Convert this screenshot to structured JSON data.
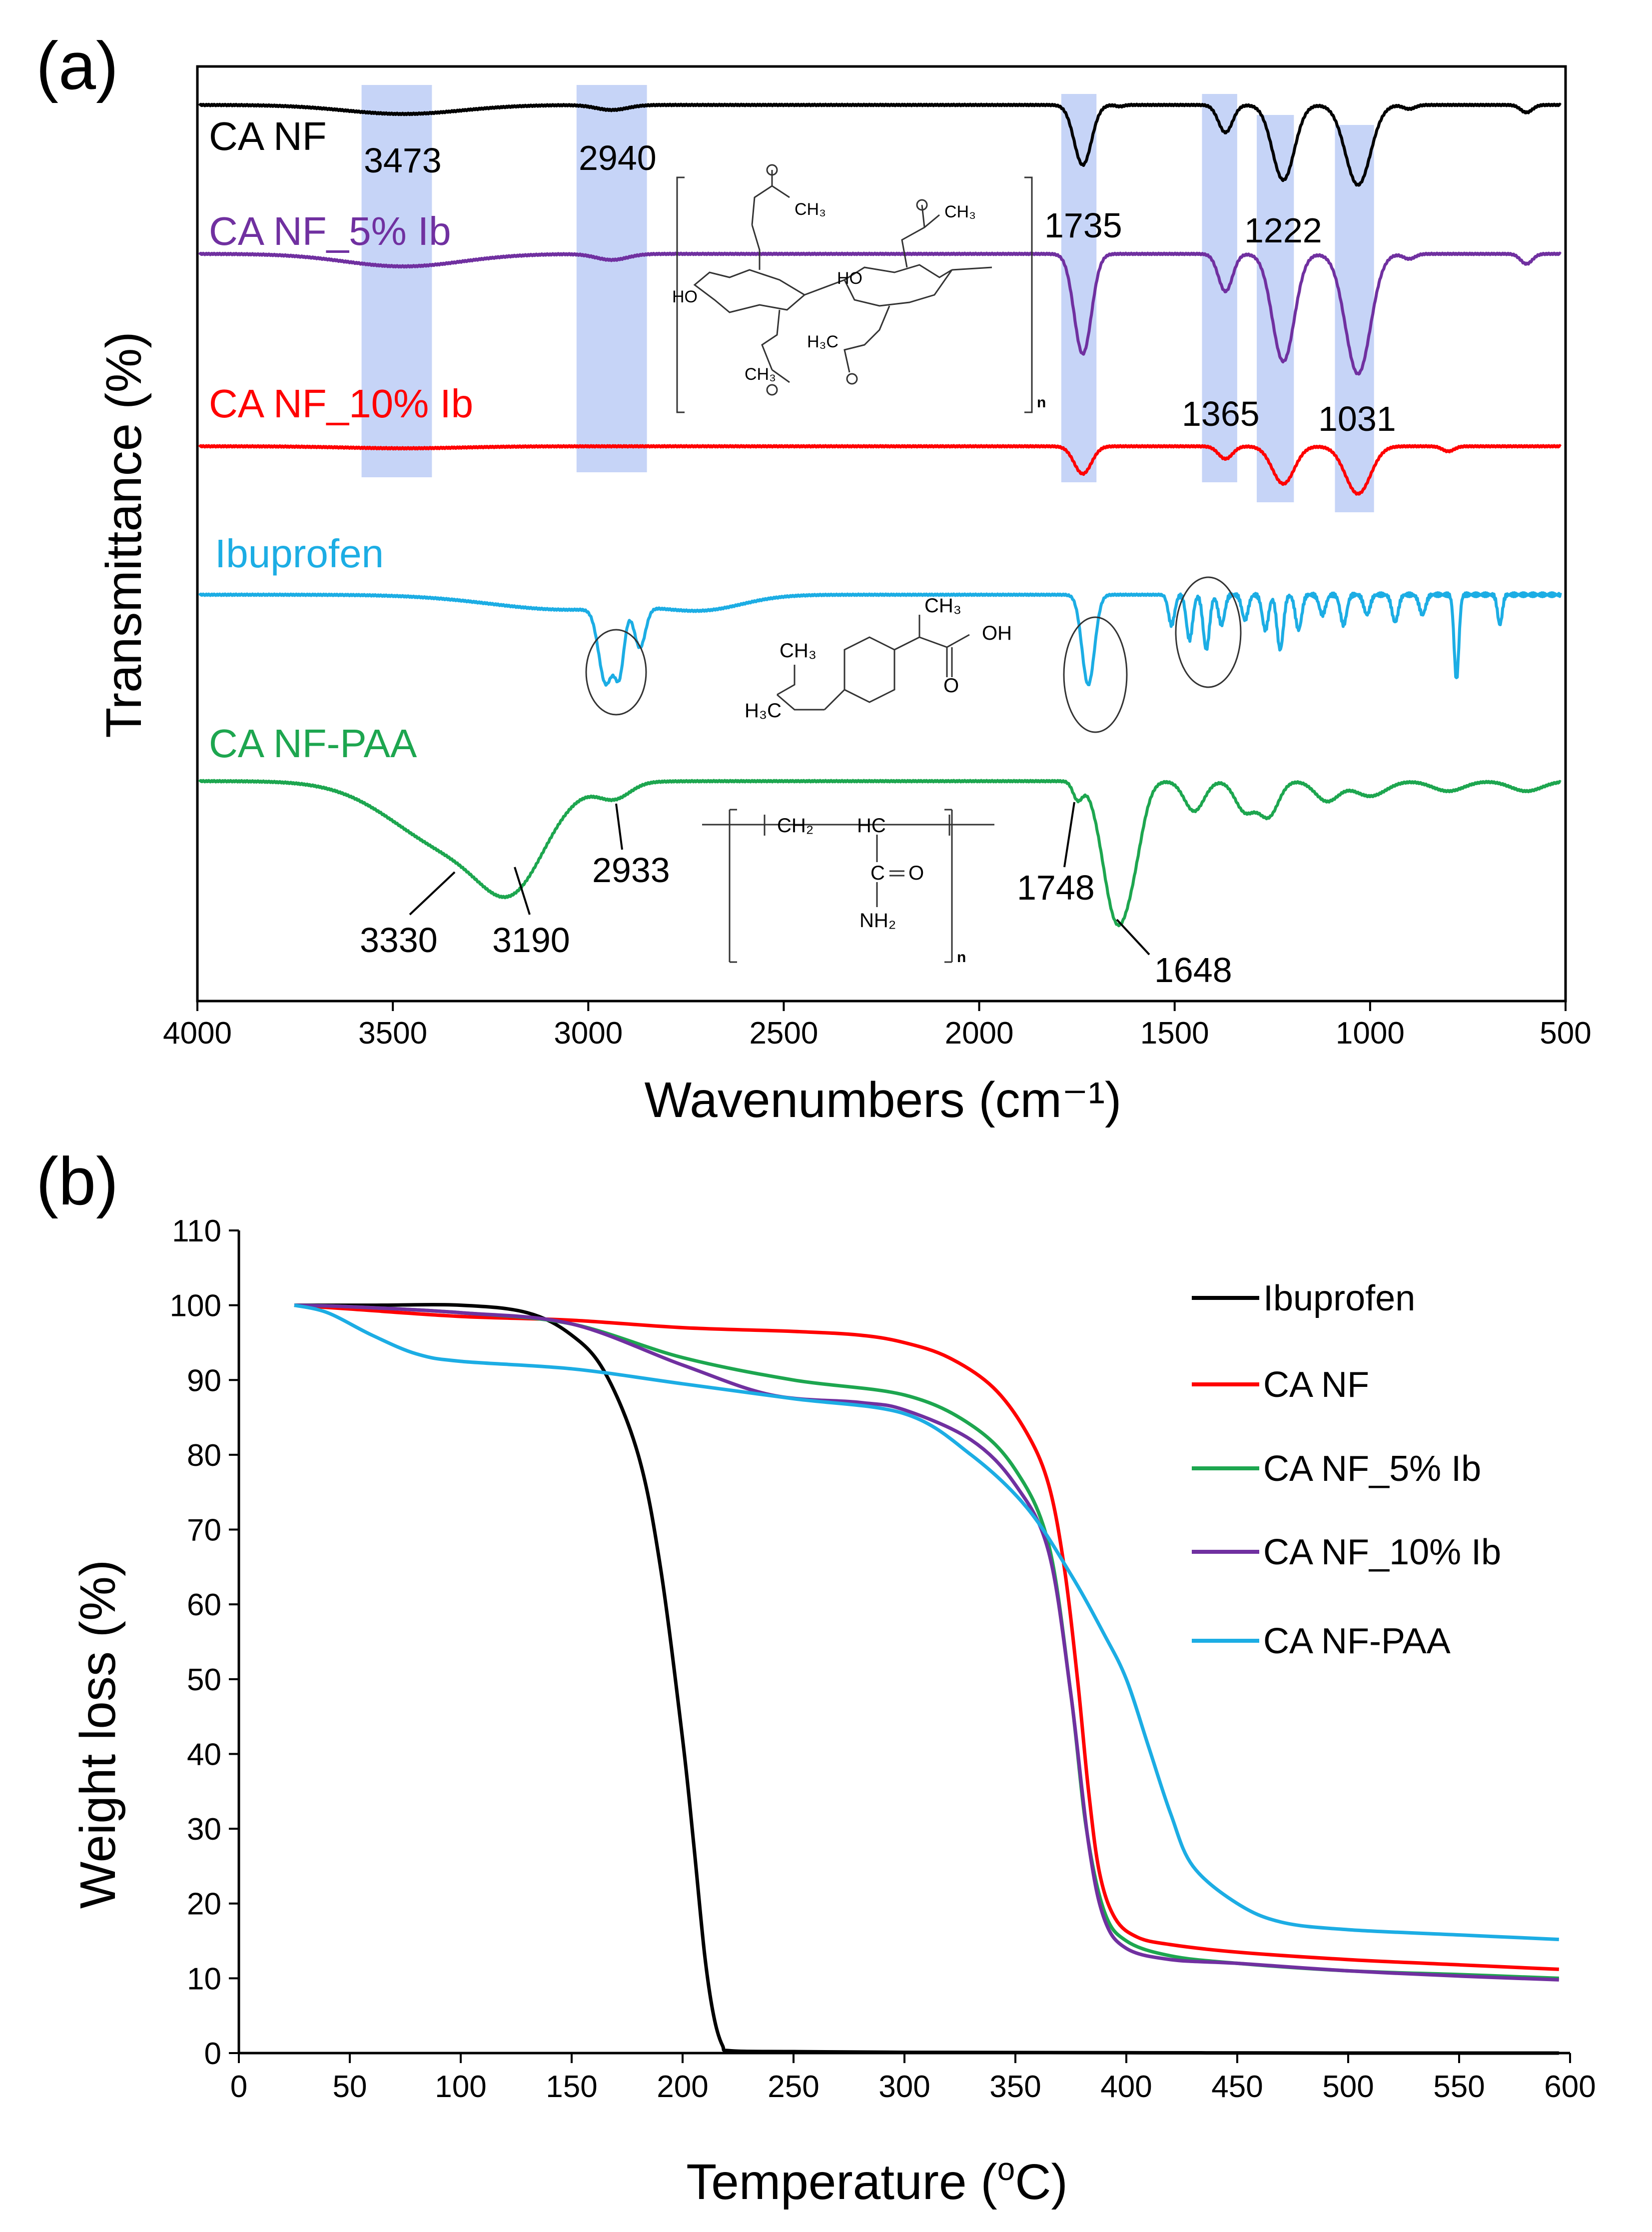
{
  "panel_a": {
    "panel_label": "(a)",
    "chart_data": {
      "type": "line",
      "title": "",
      "xlabel": "Wavenumbers (cm⁻¹)",
      "ylabel": "Transmittance (%)",
      "xlim": [
        4000,
        500
      ],
      "x_ticks": [
        "4000",
        "3500",
        "3000",
        "2500",
        "2000",
        "1500",
        "1000",
        "500"
      ],
      "x_tick_values": [
        4000,
        3500,
        3000,
        2500,
        2000,
        1500,
        1000,
        500
      ],
      "highlight_bands": [
        [
          3580,
          3400
        ],
        [
          3030,
          2850
        ],
        [
          1790,
          1700
        ],
        [
          1430,
          1340
        ],
        [
          1290,
          1195
        ],
        [
          1090,
          990
        ]
      ],
      "series": [
        {
          "name": "CA NF",
          "color": "#000000",
          "offset": 0,
          "peaks": [
            [
              3473,
              18,
              150
            ],
            [
              2940,
              10,
              40
            ],
            [
              1735,
              120,
              22
            ],
            [
              1640,
              3,
              10
            ],
            [
              1370,
              55,
              18
            ],
            [
              1222,
              150,
              28
            ],
            [
              1031,
              160,
              32
            ],
            [
              900,
              8,
              15
            ],
            [
              600,
              15,
              15
            ]
          ]
        },
        {
          "name": "CA NF_5% Ib",
          "color": "#7030A0",
          "offset": 1,
          "peaks": [
            [
              3473,
              25,
              150
            ],
            [
              2940,
              12,
              40
            ],
            [
              1735,
              200,
              22
            ],
            [
              1370,
              75,
              18
            ],
            [
              1222,
              215,
              28
            ],
            [
              1031,
              240,
              32
            ],
            [
              900,
              10,
              15
            ],
            [
              600,
              20,
              15
            ]
          ]
        },
        {
          "name": "CA NF_10% Ib",
          "color": "#FF0000",
          "offset": 2,
          "peaks": [
            [
              3473,
              4,
              150
            ],
            [
              1735,
              55,
              22
            ],
            [
              1370,
              25,
              18
            ],
            [
              1222,
              75,
              28
            ],
            [
              1031,
              95,
              32
            ],
            [
              800,
              10,
              15
            ]
          ]
        },
        {
          "name": "Ibuprofen",
          "color": "#1CADE4",
          "offset": 3,
          "peaks": [
            [
              3050,
              30,
              200
            ],
            [
              2955,
              150,
              18
            ],
            [
              2920,
              120,
              12
            ],
            [
              2868,
              80,
              14
            ],
            [
              2700,
              25,
              100
            ],
            [
              1721,
              180,
              16
            ],
            [
              1508,
              60,
              8
            ],
            [
              1462,
              90,
              8
            ],
            [
              1419,
              110,
              8
            ],
            [
              1380,
              60,
              8
            ],
            [
              1320,
              50,
              8
            ],
            [
              1268,
              70,
              8
            ],
            [
              1230,
              110,
              8
            ],
            [
              1183,
              70,
              8
            ],
            [
              1122,
              40,
              8
            ],
            [
              1068,
              60,
              8
            ],
            [
              1008,
              40,
              8
            ],
            [
              936,
              55,
              8
            ],
            [
              866,
              40,
              8
            ],
            [
              779,
              170,
              6
            ],
            [
              668,
              60,
              6
            ]
          ]
        },
        {
          "name": "CA NF-PAA",
          "color": "#1DA64F",
          "offset": 4,
          "peaks": [
            [
              3330,
              140,
              160
            ],
            [
              3190,
              130,
              80
            ],
            [
              2933,
              30,
              40
            ],
            [
              1748,
              35,
              12
            ],
            [
              1648,
              275,
              35
            ],
            [
              1600,
              70,
              25
            ],
            [
              1450,
              60,
              25
            ],
            [
              1320,
              60,
              25
            ],
            [
              1260,
              70,
              25
            ],
            [
              1110,
              40,
              30
            ],
            [
              1000,
              30,
              40
            ],
            [
              800,
              20,
              40
            ],
            [
              600,
              20,
              40
            ]
          ]
        }
      ],
      "series_labels": [
        "CA NF",
        "CA NF_5% Ib",
        "CA NF_10% Ib",
        "Ibuprofen",
        "CA NF-PAA"
      ],
      "annotations": [
        "3473",
        "2940",
        "1735",
        "1222",
        "1365",
        "1031",
        "2933",
        "3330",
        "3190",
        "1748",
        "1648"
      ],
      "structures": {
        "ca_groups": [
          "CH₃",
          "CH₃",
          "H₃C",
          "CH₃",
          "HO",
          "HO",
          "n"
        ],
        "ibuprofen_groups": [
          "CH₃",
          "OH",
          "O",
          "H₃C",
          "CH₃"
        ],
        "paa_groups": [
          "CH₂",
          "HC",
          "C",
          "O",
          "NH₂",
          "n"
        ]
      }
    }
  },
  "panel_b": {
    "panel_label": "(b)",
    "chart_data": {
      "type": "line",
      "title": "",
      "xlabel": "Temperature (°C)",
      "xlabel_prefix": "Temperature (",
      "xlabel_sup": "o",
      "xlabel_suffix": "C)",
      "ylabel": "Weight loss (%)",
      "xlim": [
        0,
        600
      ],
      "ylim": [
        0,
        110
      ],
      "x_ticks": [
        "0",
        "50",
        "100",
        "150",
        "200",
        "250",
        "300",
        "350",
        "400",
        "450",
        "500",
        "550",
        "600"
      ],
      "y_ticks": [
        "0",
        "10",
        "20",
        "30",
        "40",
        "50",
        "60",
        "70",
        "80",
        "90",
        "100",
        "110"
      ],
      "legend_position": "top-right",
      "series": [
        {
          "name": "Ibuprofen",
          "color": "#000000",
          "x": [
            25,
            60,
            100,
            130,
            150,
            165,
            180,
            190,
            200,
            205,
            210,
            214,
            218,
            222,
            250,
            300,
            400,
            500,
            595
          ],
          "y": [
            100,
            100,
            100,
            99,
            96,
            91,
            80,
            65,
            42,
            28,
            13,
            5,
            1,
            0.3,
            0.2,
            0.1,
            0.05,
            0,
            0
          ]
        },
        {
          "name": "CA NF",
          "color": "#FF0000",
          "x": [
            25,
            50,
            100,
            150,
            200,
            250,
            280,
            300,
            320,
            340,
            355,
            365,
            372,
            378,
            383,
            388,
            395,
            405,
            420,
            450,
            500,
            550,
            595
          ],
          "y": [
            100,
            99.5,
            98.5,
            98,
            97,
            96.5,
            96,
            95,
            93,
            89,
            83,
            76,
            65,
            50,
            35,
            24,
            18,
            15.5,
            14.5,
            13.5,
            12.5,
            11.8,
            11.2
          ]
        },
        {
          "name": "CA NF_5% Ib",
          "color": "#1DA64F",
          "x": [
            25,
            50,
            100,
            150,
            200,
            250,
            300,
            330,
            350,
            365,
            375,
            382,
            390,
            400,
            420,
            450,
            500,
            550,
            595
          ],
          "y": [
            100,
            99.8,
            99,
            97.5,
            93,
            90,
            88,
            84,
            78,
            68,
            48,
            30,
            19,
            15,
            13,
            12,
            11,
            10.5,
            10
          ]
        },
        {
          "name": "CA NF_10% Ib",
          "color": "#7030A0",
          "x": [
            25,
            50,
            100,
            150,
            200,
            240,
            280,
            300,
            330,
            350,
            365,
            375,
            383,
            390,
            400,
            420,
            450,
            500,
            550,
            595
          ],
          "y": [
            100,
            99.8,
            99,
            97.5,
            92,
            88,
            87,
            86,
            82,
            76,
            67,
            48,
            28,
            18,
            14,
            12.5,
            12,
            11,
            10.3,
            9.8
          ]
        },
        {
          "name": "CA NF-PAA",
          "color": "#1CADE4",
          "x": [
            25,
            40,
            60,
            80,
            100,
            150,
            200,
            250,
            300,
            330,
            355,
            375,
            390,
            400,
            410,
            420,
            430,
            450,
            470,
            500,
            550,
            595
          ],
          "y": [
            100,
            99,
            96,
            93.5,
            92.5,
            91.5,
            89.5,
            87.5,
            85.5,
            80,
            73,
            64,
            56,
            50,
            41,
            32,
            25,
            20,
            17.5,
            16.5,
            15.8,
            15.2
          ]
        }
      ]
    }
  }
}
